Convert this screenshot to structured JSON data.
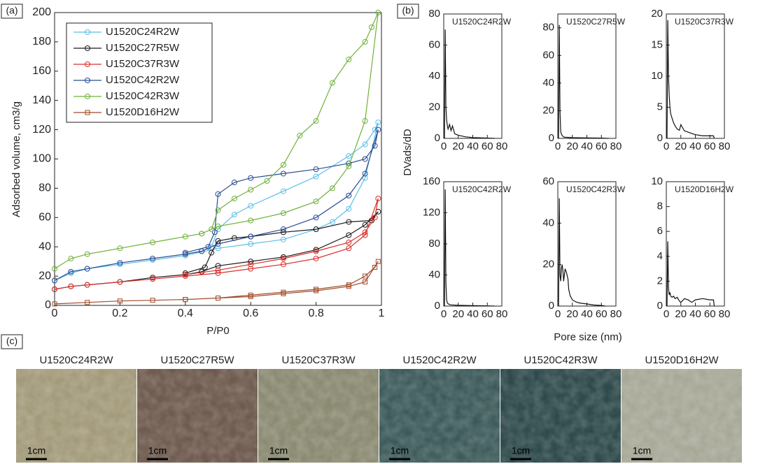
{
  "chart_data": [
    {
      "type": "line",
      "panel_label": "(a)",
      "xlabel": "P/P0",
      "ylabel": "Adsorbed volume, cm3/g",
      "xlim": [
        0,
        1
      ],
      "xticks": [
        0,
        0.2,
        0.4,
        0.6,
        0.8,
        1
      ],
      "ylim": [
        0,
        200
      ],
      "yticks": [
        0,
        20,
        40,
        60,
        80,
        100,
        120,
        140,
        160,
        180,
        200
      ],
      "legend": "upper-left",
      "series": [
        {
          "name": "U1520C24R2W",
          "color": "#5bbfe8",
          "marker": "circle",
          "x": [
            0,
            0.05,
            0.1,
            0.2,
            0.3,
            0.4,
            0.5,
            0.6,
            0.7,
            0.8,
            0.85,
            0.9,
            0.95,
            0.99,
            0.98,
            0.95,
            0.9,
            0.8,
            0.7,
            0.6,
            0.55,
            0.5,
            0.48,
            0.45,
            0.4
          ],
          "values": [
            17,
            22,
            25,
            28,
            31,
            34,
            39,
            42,
            45,
            52,
            57,
            66,
            87,
            125,
            120,
            110,
            102,
            88,
            78,
            68,
            62,
            52,
            40,
            37,
            35
          ]
        },
        {
          "name": "U1520C27R5W",
          "color": "#1a1a1a",
          "marker": "circle",
          "x": [
            0,
            0.05,
            0.1,
            0.2,
            0.3,
            0.4,
            0.45,
            0.5,
            0.6,
            0.7,
            0.8,
            0.9,
            0.95,
            0.99,
            0.97,
            0.9,
            0.8,
            0.7,
            0.6,
            0.55,
            0.5,
            0.48,
            0.46,
            0.4
          ],
          "values": [
            11,
            13,
            14,
            16,
            19,
            21,
            23,
            27,
            30,
            33,
            38,
            48,
            55,
            64,
            58,
            57,
            52,
            50,
            47,
            46,
            44,
            36,
            26,
            22
          ]
        },
        {
          "name": "U1520C37R3W",
          "color": "#d9302c",
          "marker": "circle",
          "x": [
            0,
            0.05,
            0.1,
            0.2,
            0.3,
            0.4,
            0.5,
            0.6,
            0.7,
            0.8,
            0.9,
            0.95,
            0.99,
            0.98,
            0.95,
            0.9,
            0.8,
            0.7,
            0.6,
            0.5,
            0.4
          ],
          "values": [
            11,
            13,
            14,
            16,
            18,
            20,
            22,
            25,
            28,
            32,
            39,
            48,
            73,
            60,
            50,
            43,
            37,
            32,
            28,
            24,
            21
          ]
        },
        {
          "name": "U1520C42R2W",
          "color": "#2b4d94",
          "marker": "circle",
          "x": [
            0,
            0.05,
            0.1,
            0.2,
            0.3,
            0.4,
            0.45,
            0.5,
            0.6,
            0.7,
            0.8,
            0.9,
            0.95,
            0.99,
            0.98,
            0.95,
            0.9,
            0.8,
            0.7,
            0.6,
            0.55,
            0.5,
            0.49,
            0.47,
            0.4
          ],
          "values": [
            17,
            23,
            25,
            29,
            32,
            35,
            37,
            42,
            47,
            52,
            60,
            75,
            90,
            120,
            109,
            100,
            97,
            93,
            90,
            87,
            84,
            76,
            50,
            40,
            36
          ]
        },
        {
          "name": "U1520C42R3W",
          "color": "#6fb23a",
          "marker": "circle",
          "x": [
            0,
            0.05,
            0.1,
            0.2,
            0.3,
            0.4,
            0.45,
            0.5,
            0.6,
            0.7,
            0.8,
            0.85,
            0.9,
            0.95,
            0.99,
            0.97,
            0.95,
            0.9,
            0.85,
            0.8,
            0.75,
            0.7,
            0.65,
            0.6,
            0.55,
            0.5,
            0.48,
            0.45
          ],
          "values": [
            25,
            32,
            35,
            39,
            43,
            47,
            49,
            54,
            58,
            63,
            71,
            80,
            95,
            126,
            200,
            190,
            180,
            168,
            152,
            126,
            116,
            96,
            85,
            79,
            73,
            65,
            52,
            49
          ]
        },
        {
          "name": "U1520D16H2W",
          "color": "#a04a28",
          "marker": "square",
          "x": [
            0,
            0.1,
            0.2,
            0.3,
            0.4,
            0.5,
            0.6,
            0.7,
            0.8,
            0.9,
            0.95,
            0.99,
            0.98,
            0.95,
            0.9,
            0.8,
            0.7,
            0.6,
            0.5,
            0.4
          ],
          "values": [
            1,
            2,
            3,
            3.5,
            4,
            5,
            6,
            8,
            10,
            13,
            16,
            30,
            26,
            20,
            14,
            11,
            9,
            7,
            5,
            4
          ]
        }
      ]
    },
    {
      "type": "line",
      "title": "U1520C24R2W",
      "xlim": [
        0,
        80
      ],
      "xticks": [
        0,
        20,
        40,
        60,
        80
      ],
      "ylim": [
        0,
        80
      ],
      "yticks": [
        0,
        20,
        40,
        60,
        80
      ],
      "series": [
        {
          "color": "#111111",
          "x": [
            1,
            2,
            3,
            4,
            5,
            6,
            8,
            10,
            12,
            15,
            20,
            30,
            40,
            60,
            70
          ],
          "values": [
            0,
            70,
            20,
            12,
            8,
            6,
            9,
            5,
            8,
            3,
            2,
            1,
            0.5,
            0.2,
            0
          ]
        }
      ]
    },
    {
      "type": "line",
      "title": "U1520C27R5W",
      "xlim": [
        0,
        80
      ],
      "xticks": [
        0,
        20,
        40,
        60,
        80
      ],
      "ylim": [
        0,
        90
      ],
      "yticks": [
        0,
        20,
        40,
        60,
        80
      ],
      "series": [
        {
          "color": "#111111",
          "x": [
            1,
            2,
            3,
            4,
            5,
            6,
            8,
            10,
            20,
            40,
            60,
            70
          ],
          "values": [
            0,
            82,
            20,
            5,
            3,
            2,
            1,
            0.8,
            0.5,
            0.3,
            0.2,
            0
          ]
        }
      ]
    },
    {
      "type": "line",
      "title": "U1520C37R3W",
      "xlim": [
        0,
        80
      ],
      "xticks": [
        0,
        20,
        40,
        60,
        80
      ],
      "ylim": [
        0,
        20
      ],
      "yticks": [
        0,
        5,
        10,
        15,
        20
      ],
      "series": [
        {
          "color": "#111111",
          "x": [
            1,
            2,
            3,
            4,
            5,
            6,
            8,
            10,
            12,
            15,
            18,
            20,
            22,
            25,
            30,
            35,
            40,
            50,
            60,
            65,
            66
          ],
          "values": [
            0,
            19,
            10,
            7,
            5,
            4,
            3.2,
            2.5,
            2,
            1.5,
            1.3,
            2.2,
            1.8,
            1.2,
            1,
            0.8,
            0.6,
            0.4,
            0.4,
            0.4,
            0
          ]
        }
      ]
    },
    {
      "type": "line",
      "title": "U1520C42R2W",
      "xlim": [
        0,
        80
      ],
      "xticks": [
        0,
        20,
        40,
        60,
        80
      ],
      "ylim": [
        0,
        160
      ],
      "yticks": [
        0,
        40,
        80,
        120,
        160
      ],
      "series": [
        {
          "color": "#111111",
          "x": [
            1,
            2,
            3,
            4,
            5,
            6,
            8,
            10,
            20,
            40,
            60,
            70
          ],
          "values": [
            0,
            150,
            30,
            8,
            4,
            3,
            2,
            1.5,
            1,
            0.5,
            0.3,
            0
          ]
        }
      ]
    },
    {
      "type": "line",
      "title": "U1520C42R3W",
      "xlim": [
        0,
        80
      ],
      "xticks": [
        0,
        20,
        40,
        60,
        80
      ],
      "ylim": [
        0,
        60
      ],
      "yticks": [
        0,
        20,
        40,
        60
      ],
      "series": [
        {
          "color": "#111111",
          "x": [
            1,
            2,
            3,
            4,
            5,
            6,
            7,
            8,
            10,
            12,
            14,
            15,
            17,
            20,
            25,
            30,
            40,
            50,
            60,
            65
          ],
          "values": [
            0,
            52,
            15,
            12,
            18,
            20,
            17,
            12,
            18,
            16,
            13,
            8,
            5,
            3,
            2,
            1.5,
            1,
            0.5,
            0.3,
            0
          ]
        }
      ]
    },
    {
      "type": "line",
      "title": "U1520D16H2W",
      "xlim": [
        0,
        80
      ],
      "xticks": [
        0,
        20,
        40,
        60,
        80
      ],
      "ylim": [
        0,
        10
      ],
      "yticks": [
        0,
        2,
        4,
        6,
        8,
        10
      ],
      "series": [
        {
          "color": "#111111",
          "x": [
            1,
            2,
            3,
            4,
            5,
            6,
            8,
            10,
            12,
            15,
            18,
            20,
            25,
            30,
            35,
            40,
            50,
            60,
            65,
            66
          ],
          "values": [
            0,
            5.2,
            1.5,
            0.9,
            1.1,
            0.8,
            0.7,
            0.8,
            0.6,
            0.7,
            0.4,
            0.3,
            0.6,
            0.5,
            0.3,
            0.5,
            0.6,
            0.5,
            0.5,
            0
          ]
        }
      ]
    }
  ],
  "panel_b": {
    "label": "(b)",
    "ylabel": "DVads/dD",
    "xlabel": "Pore size (nm)"
  },
  "panel_c": {
    "label": "(c)",
    "photos": [
      {
        "title": "U1520C24R2W",
        "scale_label": "1cm",
        "color": "#a39a7a"
      },
      {
        "title": "U1520C27R5W",
        "scale_label": "1cm",
        "color": "#6e5a4e"
      },
      {
        "title": "U1520C37R3W",
        "scale_label": "1cm",
        "color": "#8a8a72"
      },
      {
        "title": "U1520C42R2W",
        "scale_label": "1cm",
        "color": "#3d5a5a"
      },
      {
        "title": "U1520C42R3W",
        "scale_label": "1cm",
        "color": "#2f4a4c"
      },
      {
        "title": "U1520D16H2W",
        "scale_label": "1cm",
        "color": "#a8a898"
      }
    ]
  }
}
